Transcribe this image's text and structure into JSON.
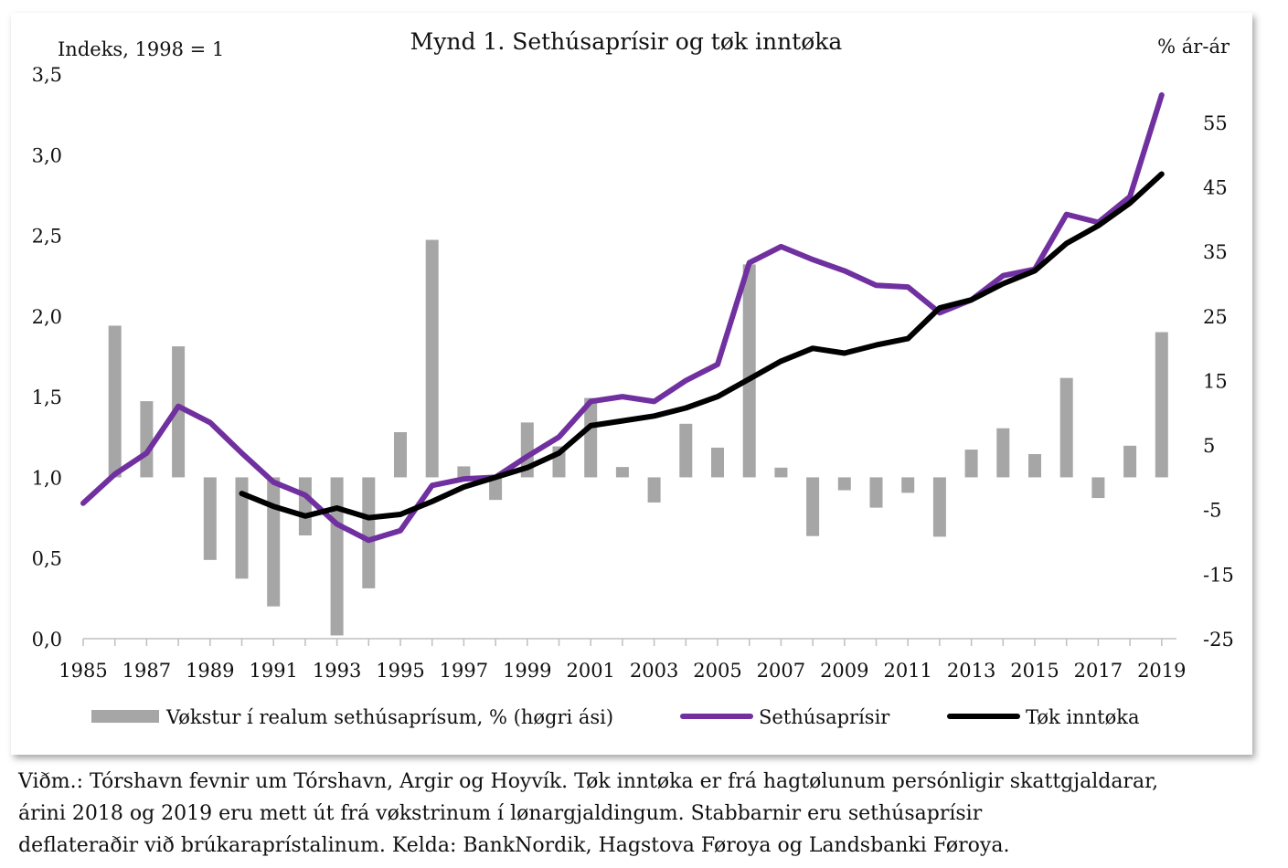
{
  "chart_data": {
    "type": "bar+line",
    "title": "Mynd 1. Sethúsaprísir og tøk inntøka",
    "left_axis_label": "Indeks, 1998 = 1",
    "right_axis_label": "% ár-ár",
    "ylim_left": [
      0,
      3.5
    ],
    "left_ticks": [
      "0,0",
      "0,5",
      "1,0",
      "1,5",
      "2,0",
      "2,5",
      "3,0",
      "3,5"
    ],
    "ylim_right": [
      -25,
      62.5
    ],
    "right_ticks": [
      "-25",
      "-15",
      "-5",
      "5",
      "15",
      "25",
      "35",
      "45",
      "55"
    ],
    "x_tick_labels": [
      "1985",
      "1987",
      "1989",
      "1991",
      "1993",
      "1995",
      "1997",
      "1999",
      "2001",
      "2003",
      "2005",
      "2007",
      "2009",
      "2011",
      "2013",
      "2015",
      "2017",
      "2019"
    ],
    "grid": false,
    "legend_position": "bottom",
    "series": [
      {
        "name": "Vøkstur í realum sethúsaprísum, % (høgri ási)",
        "kind": "bar",
        "axis": "right",
        "color": "#a6a6a6",
        "x": [
          1986,
          1987,
          1988,
          1989,
          1990,
          1991,
          1992,
          1993,
          1994,
          1995,
          1996,
          1997,
          1998,
          1999,
          2000,
          2001,
          2002,
          2003,
          2004,
          2005,
          2006,
          2007,
          2008,
          2009,
          2010,
          2011,
          2012,
          2013,
          2014,
          2015,
          2016,
          2017,
          2018,
          2019
        ],
        "values": [
          23.5,
          11.8,
          20.3,
          -12.8,
          -15.7,
          -20,
          -9,
          -24.5,
          -17.2,
          7,
          36.8,
          1.7,
          -3.5,
          8.5,
          4.8,
          12.3,
          1.6,
          -3.9,
          8.3,
          4.6,
          33,
          1.5,
          -9.1,
          -2,
          -4.7,
          -2.4,
          -9.2,
          4.3,
          7.6,
          3.6,
          15.4,
          -3.2,
          4.9,
          22.5
        ]
      },
      {
        "name": "Sethúsaprísir",
        "kind": "line",
        "axis": "left",
        "color": "#7030a0",
        "x": [
          1985,
          1986,
          1987,
          1988,
          1989,
          1990,
          1991,
          1992,
          1993,
          1994,
          1995,
          1996,
          1997,
          1998,
          1999,
          2000,
          2001,
          2002,
          2003,
          2004,
          2005,
          2006,
          2007,
          2008,
          2009,
          2010,
          2011,
          2012,
          2013,
          2014,
          2015,
          2016,
          2017,
          2018,
          2019
        ],
        "values": [
          0.84,
          1.02,
          1.15,
          1.44,
          1.34,
          1.15,
          0.97,
          0.89,
          0.71,
          0.61,
          0.67,
          0.95,
          0.99,
          1.0,
          1.13,
          1.25,
          1.47,
          1.5,
          1.47,
          1.6,
          1.7,
          2.33,
          2.43,
          2.35,
          2.28,
          2.19,
          2.18,
          2.02,
          2.1,
          2.25,
          2.29,
          2.63,
          2.58,
          2.74,
          3.37
        ]
      },
      {
        "name": "Tøk inntøka",
        "kind": "line",
        "axis": "left",
        "color": "#000000",
        "x": [
          1990,
          1991,
          1992,
          1993,
          1994,
          1995,
          1996,
          1997,
          1998,
          1999,
          2000,
          2001,
          2002,
          2003,
          2004,
          2005,
          2006,
          2007,
          2008,
          2009,
          2010,
          2011,
          2012,
          2013,
          2014,
          2015,
          2016,
          2017,
          2018,
          2019
        ],
        "values": [
          0.9,
          0.82,
          0.76,
          0.81,
          0.75,
          0.77,
          0.85,
          0.94,
          1.0,
          1.06,
          1.15,
          1.32,
          1.35,
          1.38,
          1.43,
          1.5,
          1.61,
          1.72,
          1.8,
          1.77,
          1.82,
          1.86,
          2.05,
          2.1,
          2.2,
          2.28,
          2.45,
          2.56,
          2.7,
          2.88
        ]
      }
    ]
  },
  "note_lines": [
    "Viðm.: Tórshavn fevnir um Tórshavn, Argir og Hoyvík. Tøk inntøka er frá hagtølunum persónligir skattgjaldarar,",
    "árini 2018 og 2019 eru mett út frá vøkstrinum í lønargjaldingum. Stabbarnir eru sethúsaprísir",
    "deflateraðir við brúkaraprístalinum. Kelda: BankNordik, Hagstova Føroya og Landsbanki Føroya."
  ]
}
